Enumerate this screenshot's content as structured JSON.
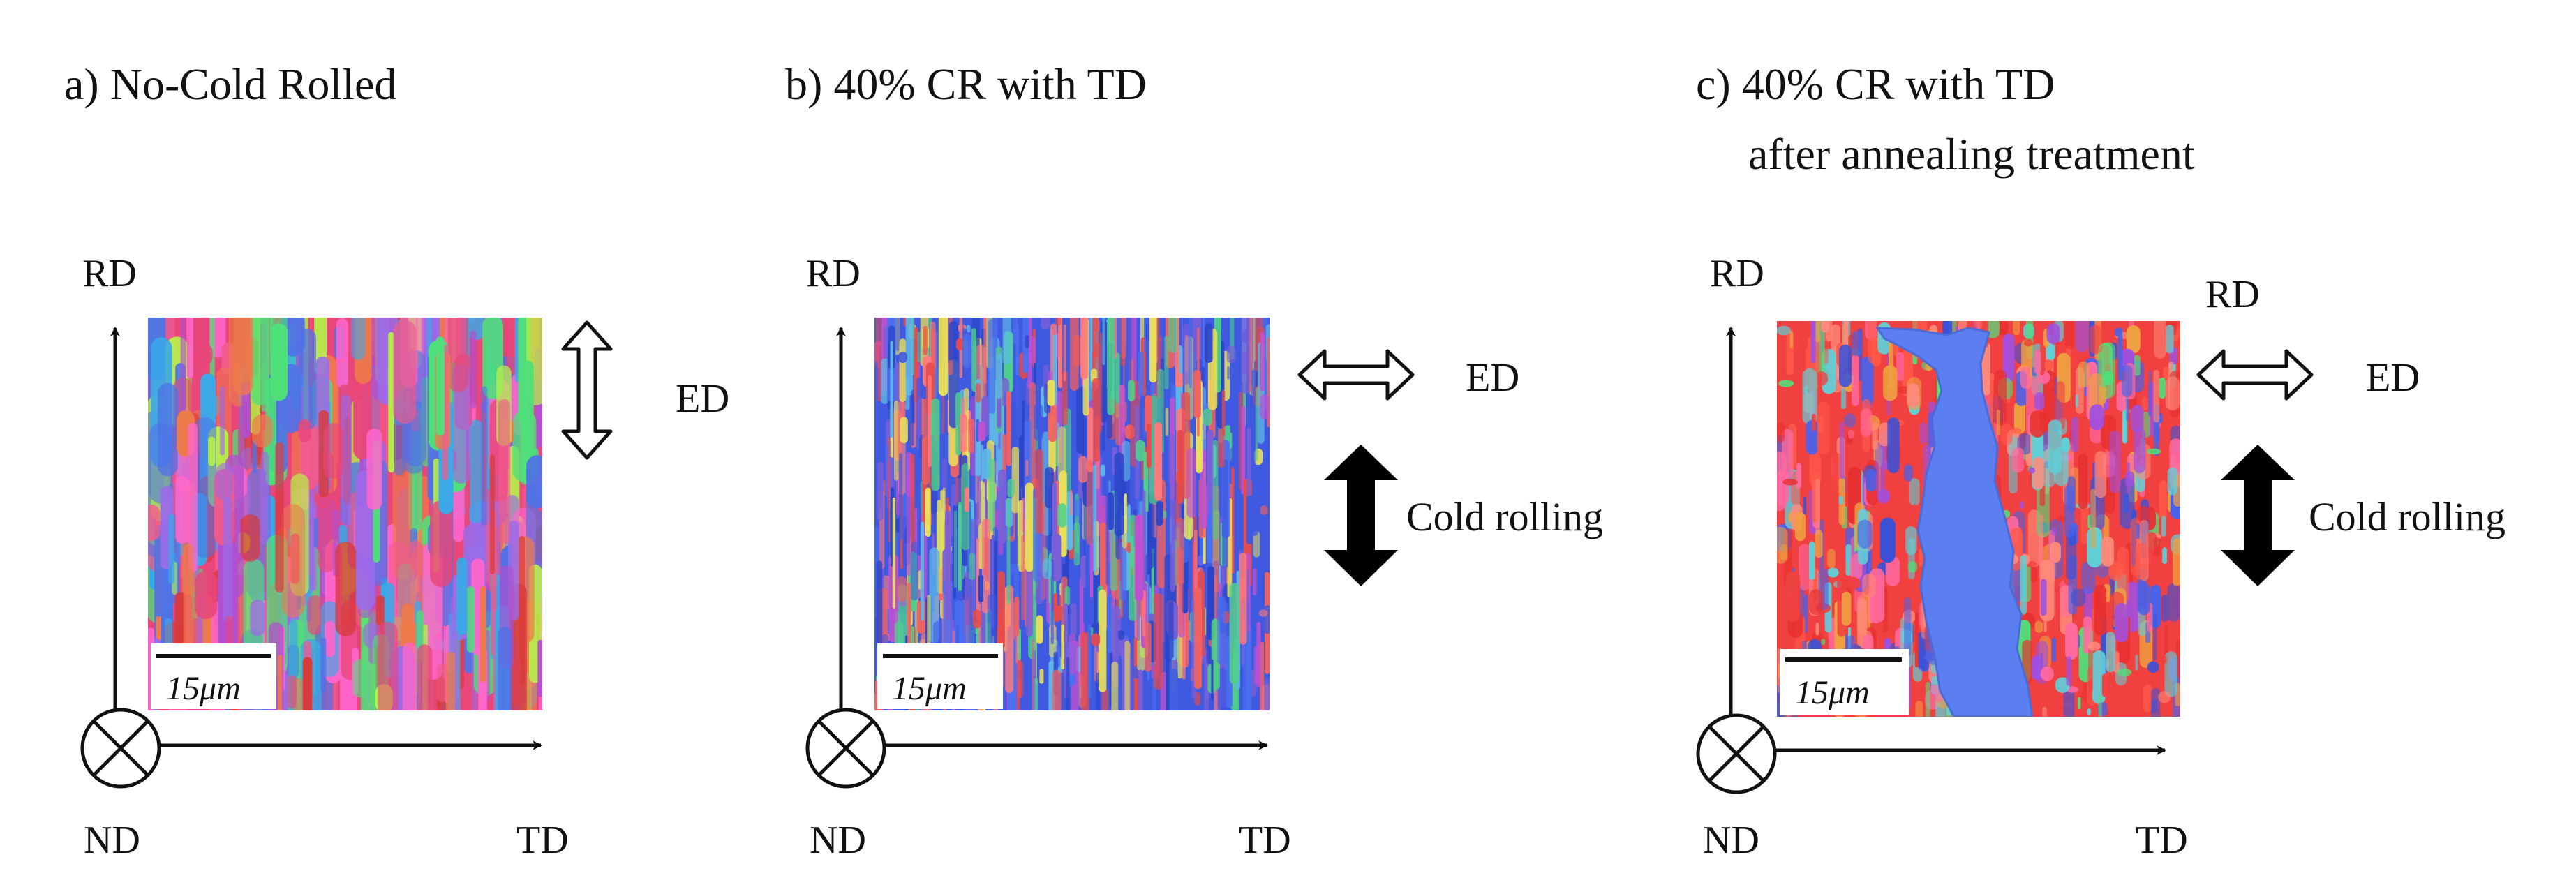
{
  "panels": [
    {
      "id": "a",
      "title_lines": [
        "a) No-Cold Rolled"
      ],
      "axis_y_label": "RD",
      "axis_x_label": "TD",
      "origin_label": "ND",
      "scale_bar": "15μm",
      "ed_label": "ED",
      "ed_arrow": "vertical-outline",
      "rolling_label": "",
      "rd_extra_label": "",
      "palette": [
        "#e8477a",
        "#f25a8c",
        "#d83a3a",
        "#ee7a4a",
        "#b04fd0",
        "#9b6be8",
        "#4f73e6",
        "#3aa9e8",
        "#4fe07a",
        "#b6f04a",
        "#ff66cc"
      ]
    },
    {
      "id": "b",
      "title_lines": [
        "b) 40% CR with TD"
      ],
      "axis_y_label": "RD",
      "axis_x_label": "TD",
      "origin_label": "ND",
      "scale_bar": "15μm",
      "ed_label": "ED",
      "ed_arrow": "horizontal-outline",
      "rolling_label": "Cold rolling",
      "rd_extra_label": "",
      "palette": [
        "#3f59e0",
        "#4a6ff0",
        "#2c45c8",
        "#e84a4a",
        "#f06262",
        "#ff7a7a",
        "#5fb8e8",
        "#7a5fd8",
        "#4fd08a",
        "#e8e05a",
        "#c050d0"
      ]
    },
    {
      "id": "c",
      "title_lines": [
        "c) 40% CR with TD",
        "after annealing treatment"
      ],
      "axis_y_label": "RD",
      "axis_x_label": "TD",
      "origin_label": "ND",
      "scale_bar": "15μm",
      "ed_label": "ED",
      "ed_arrow": "horizontal-outline",
      "rolling_label": "Cold rolling",
      "rd_extra_label": "RD",
      "palette": [
        "#f04040",
        "#e83030",
        "#ff5a4a",
        "#4a62e8",
        "#3a52d8",
        "#5fd0d8",
        "#ff8a7a",
        "#a050e0",
        "#4fe07a",
        "#f0a040",
        "#ff6aa0"
      ]
    }
  ]
}
